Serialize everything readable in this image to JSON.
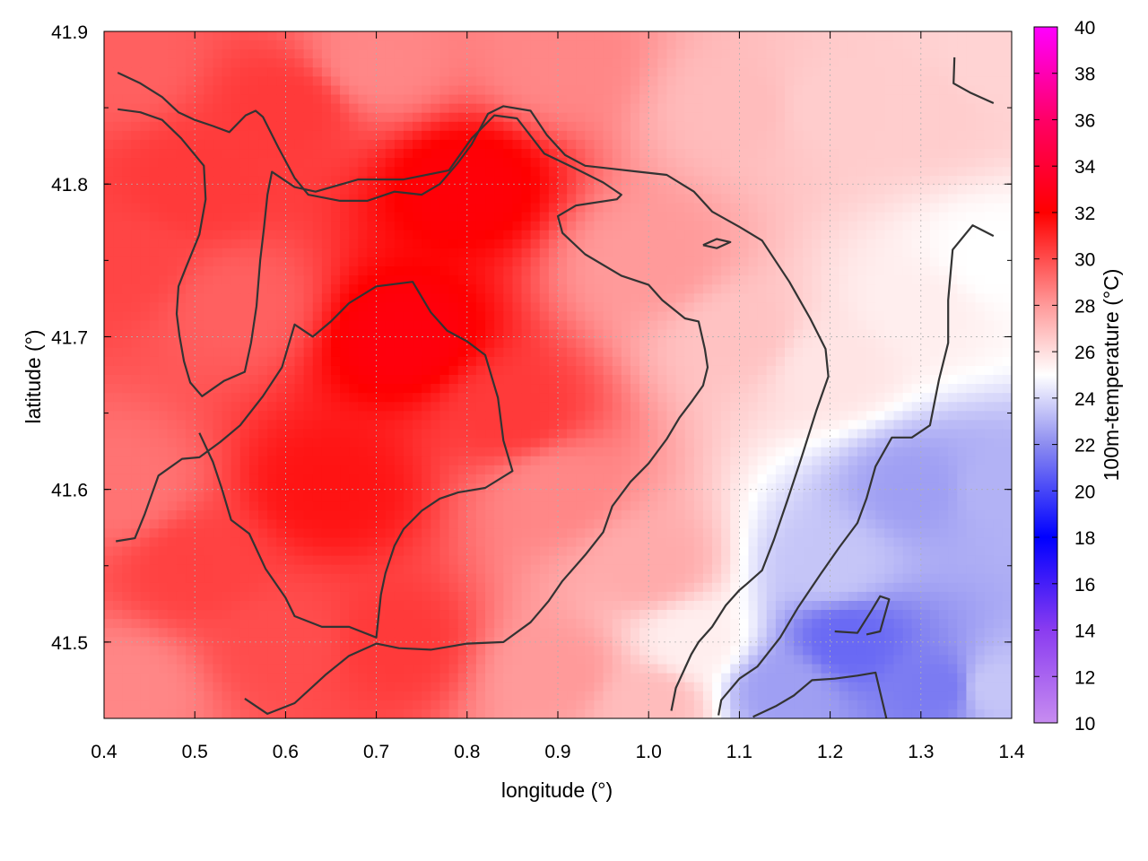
{
  "chart_data": {
    "type": "heatmap",
    "title": "",
    "xlabel": "longitude (°)",
    "ylabel": "latitude (°)",
    "colorbar_label": "100m-temperature (°C)",
    "xlim": [
      0.4,
      1.4
    ],
    "ylim": [
      41.45,
      41.9
    ],
    "clim": [
      10,
      40
    ],
    "x_ticks": [
      0.4,
      0.5,
      0.6,
      0.7,
      0.8,
      0.9,
      1.0,
      1.1,
      1.2,
      1.3,
      1.4
    ],
    "y_ticks": [
      41.5,
      41.6,
      41.7,
      41.8,
      41.9
    ],
    "colorbar_ticks": [
      10,
      12,
      14,
      16,
      18,
      20,
      22,
      24,
      26,
      28,
      30,
      32,
      34,
      36,
      38,
      40
    ],
    "grid": true,
    "colormap": [
      {
        "value": 10,
        "color": "#c78cf0"
      },
      {
        "value": 14,
        "color": "#8a3cf0"
      },
      {
        "value": 18,
        "color": "#0000ff"
      },
      {
        "value": 22,
        "color": "#8c8cf0"
      },
      {
        "value": 25,
        "color": "#ffffff"
      },
      {
        "value": 28,
        "color": "#ff9a9a"
      },
      {
        "value": 32,
        "color": "#ff0000"
      },
      {
        "value": 36,
        "color": "#ff0066"
      },
      {
        "value": 40,
        "color": "#ff00ff"
      }
    ],
    "field_anchors": [
      {
        "lon": 0.42,
        "lat": 41.88,
        "t": 29.5
      },
      {
        "lon": 0.42,
        "lat": 41.75,
        "t": 30.2
      },
      {
        "lon": 0.42,
        "lat": 41.6,
        "t": 29.0
      },
      {
        "lon": 0.42,
        "lat": 41.47,
        "t": 28.5
      },
      {
        "lon": 0.5,
        "lat": 41.8,
        "t": 30.5
      },
      {
        "lon": 0.6,
        "lat": 41.85,
        "t": 30.5
      },
      {
        "lon": 0.55,
        "lat": 41.72,
        "t": 29.5
      },
      {
        "lon": 0.5,
        "lat": 41.55,
        "t": 30.3
      },
      {
        "lon": 0.6,
        "lat": 41.5,
        "t": 30.0
      },
      {
        "lon": 0.73,
        "lat": 41.7,
        "t": 32.5
      },
      {
        "lon": 0.8,
        "lat": 41.8,
        "t": 32.3
      },
      {
        "lon": 0.65,
        "lat": 41.6,
        "t": 31.5
      },
      {
        "lon": 0.72,
        "lat": 41.5,
        "t": 30.5
      },
      {
        "lon": 0.85,
        "lat": 41.65,
        "t": 30.5
      },
      {
        "lon": 0.7,
        "lat": 41.88,
        "t": 28.5
      },
      {
        "lon": 0.9,
        "lat": 41.88,
        "t": 28.5
      },
      {
        "lon": 0.9,
        "lat": 41.6,
        "t": 28.5
      },
      {
        "lon": 0.9,
        "lat": 41.48,
        "t": 28.0
      },
      {
        "lon": 1.0,
        "lat": 41.75,
        "t": 28.0
      },
      {
        "lon": 1.0,
        "lat": 41.55,
        "t": 27.5
      },
      {
        "lon": 1.0,
        "lat": 41.46,
        "t": 27.0
      },
      {
        "lon": 1.1,
        "lat": 41.85,
        "t": 27.0
      },
      {
        "lon": 1.1,
        "lat": 41.7,
        "t": 26.8
      },
      {
        "lon": 1.05,
        "lat": 41.5,
        "t": 25.5
      },
      {
        "lon": 1.2,
        "lat": 41.85,
        "t": 26.5
      },
      {
        "lon": 1.2,
        "lat": 41.68,
        "t": 25.8
      },
      {
        "lon": 1.2,
        "lat": 41.55,
        "t": 23.5
      },
      {
        "lon": 1.22,
        "lat": 41.5,
        "t": 21.0
      },
      {
        "lon": 1.15,
        "lat": 41.47,
        "t": 22.5
      },
      {
        "lon": 1.3,
        "lat": 41.85,
        "t": 26.5
      },
      {
        "lon": 1.3,
        "lat": 41.72,
        "t": 25.5
      },
      {
        "lon": 1.3,
        "lat": 41.6,
        "t": 22.5
      },
      {
        "lon": 1.32,
        "lat": 41.47,
        "t": 21.5
      },
      {
        "lon": 1.38,
        "lat": 41.88,
        "t": 26.3
      },
      {
        "lon": 1.38,
        "lat": 41.75,
        "t": 25.0
      },
      {
        "lon": 1.38,
        "lat": 41.6,
        "t": 23.0
      },
      {
        "lon": 1.38,
        "lat": 41.47,
        "t": 23.5
      }
    ],
    "contours": [
      {
        "points": [
          [
            0.415,
            41.873
          ],
          [
            0.44,
            41.866
          ],
          [
            0.464,
            41.857
          ],
          [
            0.482,
            41.847
          ],
          [
            0.5,
            41.842
          ],
          [
            0.52,
            41.838
          ],
          [
            0.538,
            41.834
          ],
          [
            0.556,
            41.845
          ],
          [
            0.567,
            41.848
          ],
          [
            0.575,
            41.844
          ],
          [
            0.592,
            41.824
          ],
          [
            0.61,
            41.804
          ],
          [
            0.625,
            41.793
          ],
          [
            0.66,
            41.789
          ],
          [
            0.69,
            41.789
          ],
          [
            0.72,
            41.795
          ],
          [
            0.735,
            41.794
          ],
          [
            0.75,
            41.793
          ],
          [
            0.77,
            41.8
          ],
          [
            0.79,
            41.814
          ],
          [
            0.805,
            41.826
          ],
          [
            0.823,
            41.846
          ],
          [
            0.84,
            41.851
          ],
          [
            0.87,
            41.848
          ],
          [
            0.888,
            41.832
          ],
          [
            0.908,
            41.819
          ],
          [
            0.93,
            41.812
          ],
          [
            0.96,
            41.81
          ],
          [
            0.99,
            41.808
          ],
          [
            1.02,
            41.806
          ],
          [
            1.05,
            41.795
          ],
          [
            1.07,
            41.782
          ],
          [
            1.1,
            41.772
          ],
          [
            1.125,
            41.763
          ],
          [
            1.155,
            41.736
          ],
          [
            1.178,
            41.712
          ],
          [
            1.195,
            41.692
          ],
          [
            1.198,
            41.674
          ],
          [
            1.185,
            41.652
          ],
          [
            1.168,
            41.62
          ],
          [
            1.153,
            41.593
          ],
          [
            1.138,
            41.567
          ],
          [
            1.125,
            41.547
          ],
          [
            1.108,
            41.538
          ],
          [
            1.1,
            41.534
          ],
          [
            1.085,
            41.524
          ],
          [
            1.07,
            41.51
          ],
          [
            1.055,
            41.5
          ],
          [
            1.047,
            41.492
          ],
          [
            1.03,
            41.47
          ],
          [
            1.025,
            41.455
          ]
        ]
      },
      {
        "points": [
          [
            0.415,
            41.849
          ],
          [
            0.44,
            41.847
          ],
          [
            0.464,
            41.842
          ],
          [
            0.485,
            41.83
          ],
          [
            0.51,
            41.812
          ],
          [
            0.512,
            41.79
          ],
          [
            0.505,
            41.767
          ],
          [
            0.49,
            41.745
          ],
          [
            0.482,
            41.733
          ],
          [
            0.48,
            41.715
          ],
          [
            0.483,
            41.701
          ],
          [
            0.488,
            41.684
          ],
          [
            0.495,
            41.67
          ],
          [
            0.508,
            41.661
          ],
          [
            0.52,
            41.666
          ],
          [
            0.532,
            41.671
          ],
          [
            0.555,
            41.677
          ],
          [
            0.562,
            41.696
          ],
          [
            0.568,
            41.72
          ],
          [
            0.572,
            41.75
          ],
          [
            0.576,
            41.77
          ],
          [
            0.58,
            41.793
          ],
          [
            0.585,
            41.808
          ],
          [
            0.61,
            41.798
          ],
          [
            0.633,
            41.795
          ],
          [
            0.68,
            41.803
          ],
          [
            0.73,
            41.803
          ],
          [
            0.78,
            41.809
          ],
          [
            0.805,
            41.83
          ],
          [
            0.83,
            41.845
          ],
          [
            0.855,
            41.843
          ],
          [
            0.885,
            41.82
          ],
          [
            0.92,
            41.81
          ],
          [
            0.95,
            41.801
          ],
          [
            0.97,
            41.793
          ],
          [
            0.965,
            41.79
          ],
          [
            0.92,
            41.786
          ],
          [
            0.9,
            41.779
          ],
          [
            0.905,
            41.768
          ],
          [
            0.93,
            41.754
          ],
          [
            0.97,
            41.74
          ],
          [
            1.0,
            41.734
          ],
          [
            1.015,
            41.724
          ],
          [
            1.04,
            41.712
          ],
          [
            1.055,
            41.71
          ],
          [
            1.062,
            41.692
          ],
          [
            1.065,
            41.68
          ],
          [
            1.06,
            41.668
          ],
          [
            1.048,
            41.658
          ],
          [
            1.034,
            41.647
          ],
          [
            1.02,
            41.633
          ],
          [
            1.0,
            41.617
          ],
          [
            0.98,
            41.605
          ],
          [
            0.96,
            41.589
          ],
          [
            0.95,
            41.572
          ],
          [
            0.93,
            41.557
          ],
          [
            0.905,
            41.54
          ],
          [
            0.89,
            41.527
          ],
          [
            0.87,
            41.513
          ],
          [
            0.84,
            41.5
          ],
          [
            0.8,
            41.499
          ],
          [
            0.76,
            41.495
          ],
          [
            0.725,
            41.496
          ],
          [
            0.7,
            41.499
          ],
          [
            0.67,
            41.491
          ],
          [
            0.645,
            41.479
          ],
          [
            0.61,
            41.46
          ],
          [
            0.58,
            41.453
          ],
          [
            0.555,
            41.463
          ]
        ]
      },
      {
        "points": [
          [
            0.413,
            41.566
          ],
          [
            0.434,
            41.568
          ],
          [
            0.445,
            41.584
          ],
          [
            0.46,
            41.609
          ],
          [
            0.486,
            41.62
          ],
          [
            0.505,
            41.621
          ],
          [
            0.528,
            41.631
          ],
          [
            0.55,
            41.642
          ],
          [
            0.575,
            41.661
          ],
          [
            0.596,
            41.68
          ],
          [
            0.61,
            41.708
          ],
          [
            0.63,
            41.7
          ],
          [
            0.65,
            41.71
          ],
          [
            0.67,
            41.722
          ],
          [
            0.7,
            41.733
          ],
          [
            0.74,
            41.736
          ],
          [
            0.76,
            41.716
          ],
          [
            0.778,
            41.704
          ],
          [
            0.8,
            41.697
          ],
          [
            0.82,
            41.688
          ],
          [
            0.834,
            41.66
          ],
          [
            0.84,
            41.632
          ],
          [
            0.85,
            41.612
          ],
          [
            0.82,
            41.601
          ],
          [
            0.79,
            41.598
          ],
          [
            0.77,
            41.594
          ],
          [
            0.75,
            41.586
          ],
          [
            0.73,
            41.574
          ],
          [
            0.72,
            41.563
          ],
          [
            0.71,
            41.545
          ],
          [
            0.705,
            41.531
          ],
          [
            0.7,
            41.503
          ],
          [
            0.67,
            41.51
          ],
          [
            0.64,
            41.51
          ],
          [
            0.61,
            41.517
          ],
          [
            0.6,
            41.529
          ],
          [
            0.578,
            41.548
          ],
          [
            0.56,
            41.571
          ],
          [
            0.54,
            41.58
          ],
          [
            0.53,
            41.6
          ],
          [
            0.52,
            41.618
          ],
          [
            0.505,
            41.637
          ]
        ]
      },
      {
        "points": [
          [
            1.06,
            41.76
          ],
          [
            1.075,
            41.764
          ],
          [
            1.09,
            41.762
          ],
          [
            1.075,
            41.758
          ],
          [
            1.06,
            41.76
          ]
        ]
      },
      {
        "points": [
          [
            1.24,
            41.505
          ],
          [
            1.255,
            41.507
          ],
          [
            1.265,
            41.528
          ],
          [
            1.255,
            41.53
          ],
          [
            1.245,
            41.52
          ],
          [
            1.23,
            41.506
          ],
          [
            1.205,
            41.507
          ]
        ]
      },
      {
        "points": [
          [
            1.115,
            41.451
          ],
          [
            1.14,
            41.458
          ],
          [
            1.16,
            41.465
          ],
          [
            1.18,
            41.475
          ],
          [
            1.205,
            41.476
          ],
          [
            1.23,
            41.478
          ],
          [
            1.25,
            41.48
          ],
          [
            1.262,
            41.45
          ]
        ]
      },
      {
        "points": [
          [
            1.337,
            41.883
          ],
          [
            1.336,
            41.866
          ],
          [
            1.354,
            41.86
          ],
          [
            1.38,
            41.853
          ]
        ]
      },
      {
        "points": [
          [
            1.38,
            41.766
          ],
          [
            1.357,
            41.773
          ],
          [
            1.335,
            41.757
          ],
          [
            1.33,
            41.724
          ],
          [
            1.33,
            41.696
          ],
          [
            1.32,
            41.672
          ],
          [
            1.31,
            41.642
          ],
          [
            1.29,
            41.634
          ],
          [
            1.268,
            41.634
          ],
          [
            1.25,
            41.615
          ],
          [
            1.24,
            41.594
          ],
          [
            1.23,
            41.578
          ],
          [
            1.21,
            41.562
          ],
          [
            1.19,
            41.545
          ],
          [
            1.165,
            41.523
          ],
          [
            1.145,
            41.503
          ],
          [
            1.12,
            41.484
          ],
          [
            1.1,
            41.476
          ],
          [
            1.08,
            41.462
          ],
          [
            1.077,
            41.452
          ]
        ]
      }
    ]
  }
}
